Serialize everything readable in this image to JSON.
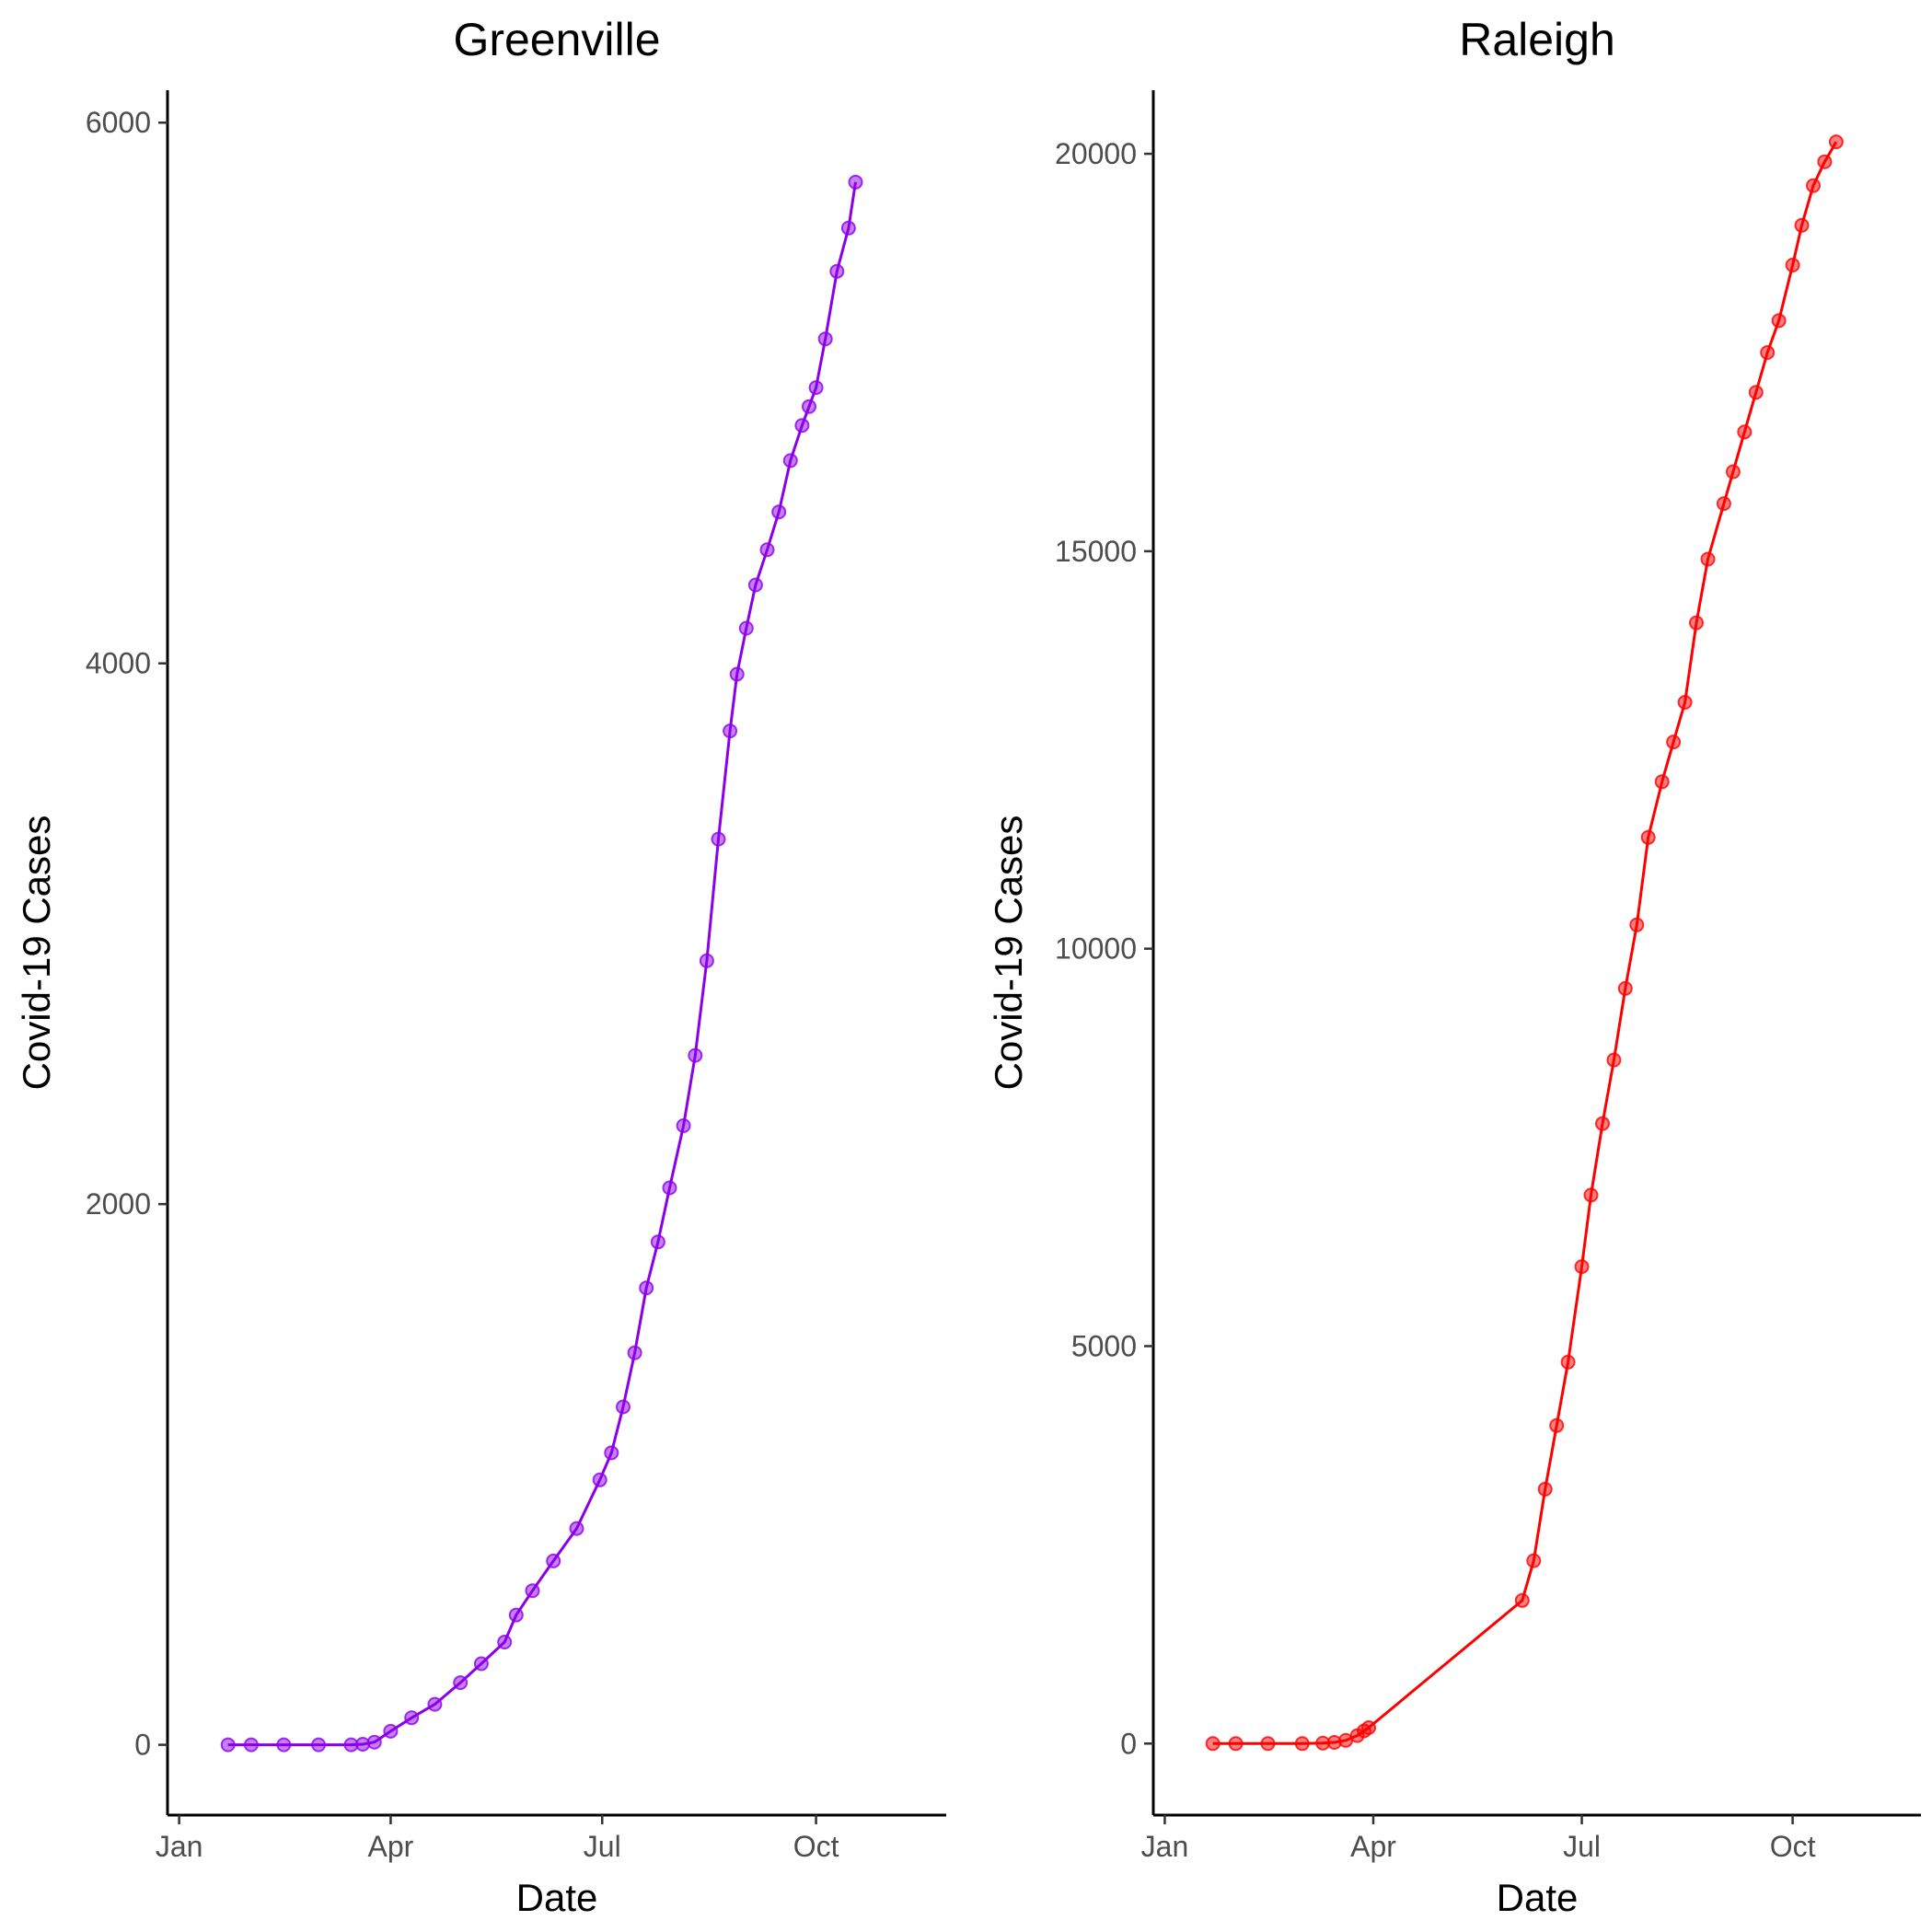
{
  "chart_data": [
    {
      "type": "line",
      "title": "Greenville",
      "xlabel": "Date",
      "ylabel": "Covid-19 Cases",
      "x_ticks": [
        "Jan",
        "Apr",
        "Jul",
        "Oct"
      ],
      "y_ticks": [
        0,
        2000,
        4000,
        6000
      ],
      "ylim": [
        -260,
        6120
      ],
      "grid": false,
      "legend": "none",
      "color": "#8B00E8",
      "series": [
        {
          "x": [
            "2020-01-22",
            "2020-02-01",
            "2020-02-15",
            "2020-03-01",
            "2020-03-15",
            "2020-03-20",
            "2020-03-25",
            "2020-04-01",
            "2020-04-10",
            "2020-04-20",
            "2020-05-01",
            "2020-05-10",
            "2020-05-20",
            "2020-05-25",
            "2020-06-01",
            "2020-06-10",
            "2020-06-20",
            "2020-06-30",
            "2020-07-05",
            "2020-07-10",
            "2020-07-15",
            "2020-07-20",
            "2020-07-25",
            "2020-07-30",
            "2020-08-05",
            "2020-08-10",
            "2020-08-15",
            "2020-08-20",
            "2020-08-25",
            "2020-08-28",
            "2020-09-01",
            "2020-09-05",
            "2020-09-10",
            "2020-09-15",
            "2020-09-20",
            "2020-09-25",
            "2020-09-28",
            "2020-10-01",
            "2020-10-05",
            "2020-10-10",
            "2020-10-15",
            "2020-10-18"
          ],
          "y": [
            0,
            0,
            0,
            0,
            0,
            2,
            10,
            50,
            100,
            150,
            230,
            300,
            380,
            480,
            570,
            680,
            800,
            980,
            1080,
            1250,
            1450,
            1690,
            1860,
            2060,
            2290,
            2550,
            2900,
            3350,
            3750,
            3960,
            4130,
            4290,
            4420,
            4560,
            4750,
            4880,
            4950,
            5020,
            5200,
            5450,
            5610,
            5780
          ]
        }
      ]
    },
    {
      "type": "line",
      "title": "Raleigh",
      "xlabel": "Date",
      "ylabel": "Covid-19 Cases",
      "x_ticks": [
        "Jan",
        "Apr",
        "Jul",
        "Oct"
      ],
      "y_ticks": [
        0,
        5000,
        10000,
        15000,
        20000
      ],
      "ylim": [
        -900,
        20800
      ],
      "grid": false,
      "legend": "none",
      "color": "#FF0000",
      "series": [
        {
          "x": [
            "2020-01-22",
            "2020-02-01",
            "2020-02-15",
            "2020-03-01",
            "2020-03-10",
            "2020-03-15",
            "2020-03-20",
            "2020-03-25",
            "2020-03-28",
            "2020-03-30",
            "2020-06-05",
            "2020-06-10",
            "2020-06-15",
            "2020-06-20",
            "2020-06-25",
            "2020-07-01",
            "2020-07-05",
            "2020-07-10",
            "2020-07-15",
            "2020-07-20",
            "2020-07-25",
            "2020-07-30",
            "2020-08-05",
            "2020-08-10",
            "2020-08-15",
            "2020-08-20",
            "2020-08-25",
            "2020-09-01",
            "2020-09-05",
            "2020-09-10",
            "2020-09-15",
            "2020-09-20",
            "2020-09-25",
            "2020-10-01",
            "2020-10-05",
            "2020-10-10",
            "2020-10-15",
            "2020-10-20"
          ],
          "y": [
            0,
            0,
            0,
            0,
            5,
            15,
            40,
            100,
            160,
            200,
            1800,
            2300,
            3200,
            4000,
            4800,
            6000,
            6900,
            7800,
            8600,
            9500,
            10300,
            11400,
            12100,
            12600,
            13100,
            14100,
            14900,
            15600,
            16000,
            16500,
            17000,
            17500,
            17900,
            18600,
            19100,
            19600,
            19900,
            20150
          ]
        }
      ]
    }
  ]
}
